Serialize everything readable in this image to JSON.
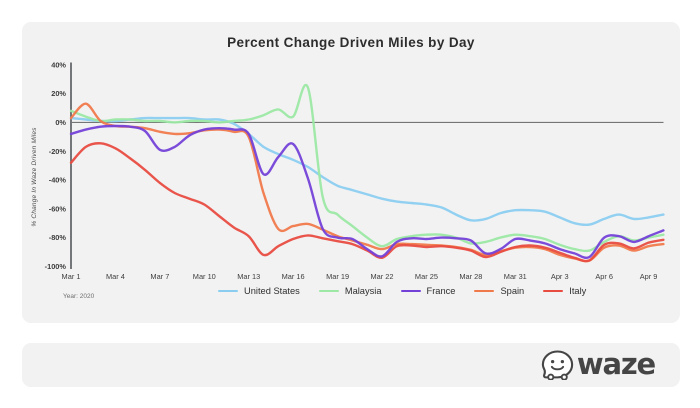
{
  "card": {
    "title": "Percent Change Driven Miles by Day",
    "year_note": "Year: 2020"
  },
  "footer": {
    "brand": "waze"
  },
  "colors": {
    "page_bg": "#ffffff",
    "card_bg": "#f2f2f3",
    "axis": "#55585c",
    "zero_line": "#757575",
    "tick_text": "#3d3d3d",
    "title_text": "#2d2d2d",
    "axis_label_text": "#4a4a4a",
    "brand_text": "#454545"
  },
  "chart_data": {
    "type": "line",
    "title": "Percent Change Driven Miles by Day",
    "xlabel": "",
    "ylabel": "% Change In Waze Driven Miles",
    "ylim": [
      -100,
      40
    ],
    "yticks": [
      40,
      20,
      0,
      -20,
      -40,
      -60,
      -80,
      -100
    ],
    "ytick_suffix": "%",
    "grid": false,
    "zero_line": true,
    "legend_position": "bottom",
    "annotation": "Year: 2020",
    "x_unit": "day",
    "x_days_total": 40,
    "xtick_labels": [
      "Mar 1",
      "Mar 4",
      "Mar 7",
      "Mar 10",
      "Mar 13",
      "Mar 16",
      "Mar 19",
      "Mar 22",
      "Mar 25",
      "Mar 28",
      "Mar 31",
      "Apr 3",
      "Apr 6",
      "Apr 9"
    ],
    "xtick_days": [
      0,
      3,
      6,
      9,
      12,
      15,
      18,
      21,
      24,
      27,
      30,
      33,
      36,
      39
    ],
    "draw_order": [
      0,
      1,
      3,
      4,
      2
    ],
    "series": [
      {
        "name": "United States",
        "color": "#8BCDF0",
        "values": [
          3,
          2,
          1,
          1,
          2,
          3,
          3,
          3,
          3,
          2,
          2,
          -1,
          -8,
          -17,
          -22,
          -26,
          -31,
          -38,
          -44,
          -47,
          -50,
          -53,
          -55,
          -56,
          -57,
          -59,
          -64,
          -68,
          -67,
          -63,
          -61,
          -61,
          -62,
          -66,
          -70,
          -71,
          -67,
          -64,
          -67,
          -66,
          -64
        ]
      },
      {
        "name": "Malaysia",
        "color": "#9CE8A4",
        "values": [
          8,
          4,
          1,
          2,
          2,
          1,
          1,
          0,
          1,
          1,
          0,
          1,
          2,
          5,
          9,
          4,
          24,
          -52,
          -64,
          -72,
          -80,
          -86,
          -81,
          -79,
          -78,
          -78,
          -80,
          -84,
          -83,
          -80,
          -78,
          -79,
          -81,
          -85,
          -88,
          -89,
          -83,
          -79,
          -82,
          -80,
          -78
        ]
      },
      {
        "name": "France",
        "color": "#7441D8",
        "values": [
          -8,
          -5,
          -3,
          -2.5,
          -3,
          -6,
          -19,
          -17,
          -9,
          -5,
          -4,
          -5,
          -8,
          -36,
          -24,
          -15,
          -39,
          -74,
          -80,
          -81,
          -88,
          -93,
          -83,
          -80.5,
          -81,
          -80,
          -80.5,
          -82,
          -91,
          -88,
          -81,
          -82,
          -84,
          -88,
          -91,
          -93.5,
          -80,
          -79,
          -83,
          -79,
          -75
        ]
      },
      {
        "name": "Spain",
        "color": "#F0794B",
        "values": [
          3,
          13,
          1,
          -2.5,
          -3,
          -4,
          -6.5,
          -8,
          -7.5,
          -5.5,
          -5,
          -6.5,
          -10,
          -49,
          -74,
          -72,
          -70.5,
          -74.5,
          -79,
          -82,
          -85,
          -88,
          -84.5,
          -84.5,
          -85,
          -85.5,
          -86.5,
          -88.5,
          -92,
          -89.5,
          -87,
          -86.5,
          -88,
          -92,
          -94.5,
          -96,
          -87,
          -85.5,
          -89,
          -86,
          -84.5
        ]
      },
      {
        "name": "Italy",
        "color": "#E84C41",
        "values": [
          -28,
          -17,
          -14.5,
          -18,
          -25,
          -33,
          -42,
          -49,
          -53,
          -57,
          -65,
          -73,
          -79,
          -92,
          -86,
          -81,
          -78.5,
          -80.5,
          -82.5,
          -84.5,
          -89,
          -94,
          -86,
          -85.5,
          -86.5,
          -86,
          -87,
          -89,
          -93.5,
          -90,
          -86.5,
          -85.5,
          -87,
          -90.5,
          -94,
          -95.8,
          -85,
          -84,
          -87.5,
          -83.5,
          -81.5
        ]
      }
    ]
  }
}
